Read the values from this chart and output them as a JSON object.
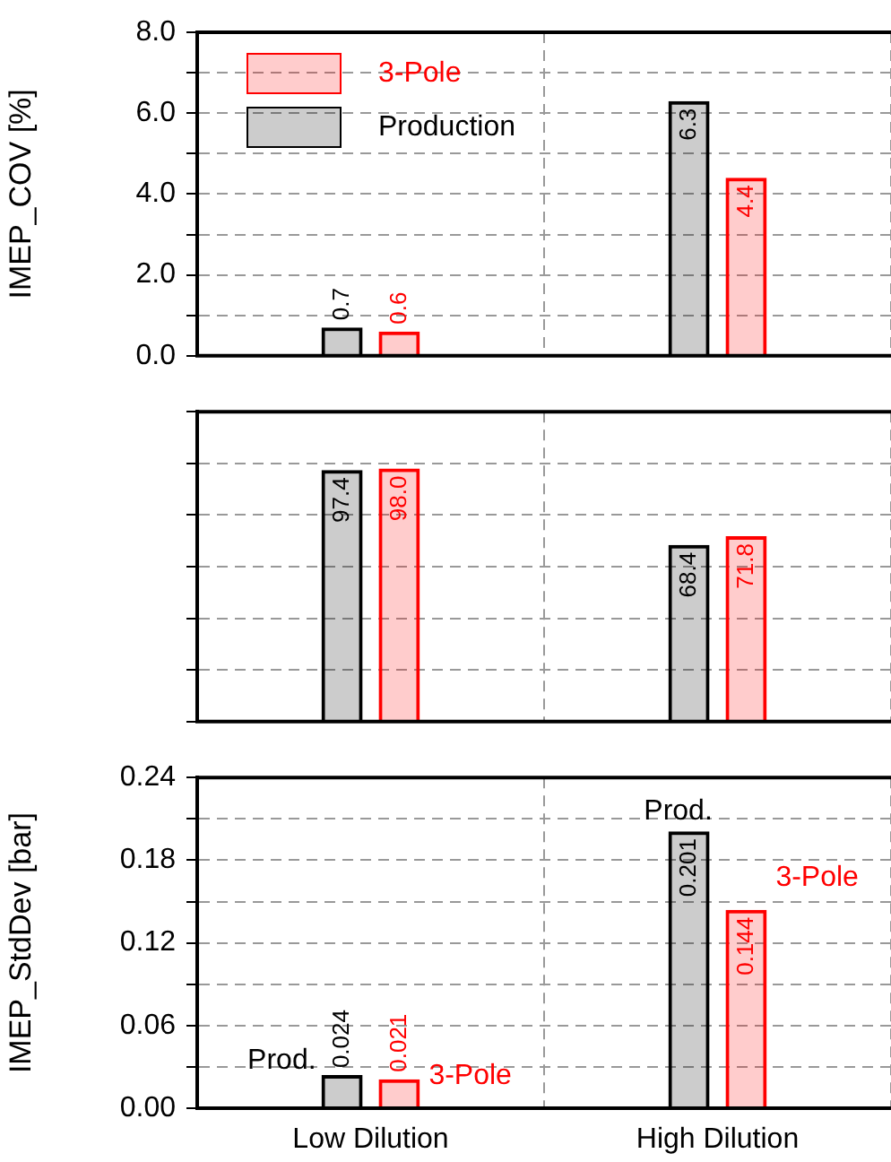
{
  "chart_data": [
    {
      "type": "bar",
      "ylabel": "IMEP_COV [%]",
      "categories": [
        null,
        null
      ],
      "series": [
        {
          "name": "Production",
          "color": "#000000",
          "values": [
            0.7,
            6.3
          ],
          "value_labels": [
            "0.7",
            "6.3"
          ]
        },
        {
          "name": "3-Pole",
          "color": "#ff0000",
          "values": [
            0.6,
            4.4
          ],
          "value_labels": [
            "0.6",
            "4.4"
          ]
        }
      ],
      "ylim": [
        0,
        8
      ],
      "yticks": [
        {
          "value": 0,
          "label": "0.0"
        },
        {
          "value": 1,
          "label": null
        },
        {
          "value": 2,
          "label": "2.0"
        },
        {
          "value": 3,
          "label": null
        },
        {
          "value": 4,
          "label": "4.0"
        },
        {
          "value": 5,
          "label": null
        },
        {
          "value": 6,
          "label": "6.0"
        },
        {
          "value": 7,
          "label": null
        },
        {
          "value": 8,
          "label": "8.0"
        }
      ],
      "grid": true,
      "legend": "top left",
      "tick_labels": "y"
    },
    {
      "type": "bar",
      "categories": [
        null,
        null
      ],
      "series": [
        {
          "color": "#000000",
          "values": [
            97.4,
            68.4
          ],
          "value_labels": [
            "97.4",
            "68.4"
          ]
        },
        {
          "color": "#ff0000",
          "values": [
            98.0,
            71.8
          ],
          "value_labels": [
            "98.0",
            "71.8"
          ]
        }
      ],
      "ylim": [
        0,
        120
      ],
      "yticks": [
        {
          "value": 0,
          "label": null
        },
        {
          "value": 20,
          "label": null
        },
        {
          "value": 40,
          "label": null
        },
        {
          "value": 60,
          "label": null
        },
        {
          "value": 80,
          "label": null
        },
        {
          "value": 100,
          "label": null
        },
        {
          "value": 120,
          "label": null
        }
      ],
      "grid": true,
      "tick_labels": false
    },
    {
      "type": "bar",
      "ylabel": "IMEP_StdDev [bar]",
      "categories": [
        "Low Dilution",
        "High Dilution"
      ],
      "series": [
        {
          "name": "Prod.",
          "color": "#000000",
          "values": [
            0.024,
            0.201
          ],
          "value_labels": [
            "0.024",
            "0.201"
          ]
        },
        {
          "name": "3-Pole",
          "color": "#ff0000",
          "values": [
            0.021,
            0.144
          ],
          "value_labels": [
            "0.021",
            "0.144"
          ]
        }
      ],
      "ylim": [
        0,
        0.24
      ],
      "yticks": [
        {
          "value": 0,
          "label": "0.00"
        },
        {
          "value": 0.03,
          "label": null
        },
        {
          "value": 0.06,
          "label": "0.06"
        },
        {
          "value": 0.09,
          "label": null
        },
        {
          "value": 0.12,
          "label": "0.12"
        },
        {
          "value": 0.15,
          "label": null
        },
        {
          "value": 0.18,
          "label": "0.18"
        },
        {
          "value": 0.21,
          "label": null
        },
        {
          "value": 0.24,
          "label": "0.24"
        }
      ],
      "grid": true
    }
  ]
}
